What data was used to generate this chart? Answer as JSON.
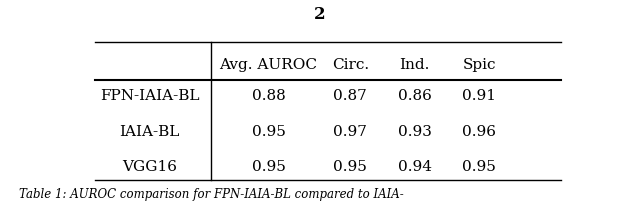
{
  "title": "2",
  "col_headers": [
    "",
    "Avg. AUROC",
    "Circ.",
    "Ind.",
    "Spic"
  ],
  "rows": [
    [
      "FPN-IAIA-BL",
      "0.88",
      "0.87",
      "0.86",
      "0.91"
    ],
    [
      "IAIA-BL",
      "0.95",
      "0.97",
      "0.93",
      "0.96"
    ],
    [
      "VGG16",
      "0.95",
      "0.95",
      "0.94",
      "0.95"
    ]
  ],
  "background_color": "#ffffff",
  "font_size": 11,
  "title_font_size": 12,
  "caption": "Table 1: AUROC comparison for FPN-IAIA-BL compared to IAIA-"
}
